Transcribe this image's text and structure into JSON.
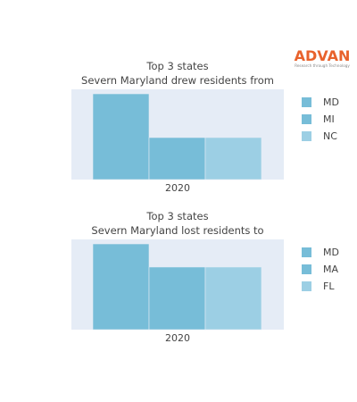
{
  "logo": {
    "brand": "ADVAN",
    "tagline": "Research through Technology",
    "color": "#e8622c"
  },
  "chart_data": [
    {
      "type": "bar",
      "title": [
        "Top 3 states",
        "Severn Maryland drew residents from"
      ],
      "categories": [
        "2020"
      ],
      "series": [
        {
          "name": "MD",
          "values": [
            100
          ],
          "color": "#77bdd8"
        },
        {
          "name": "MI",
          "values": [
            49
          ],
          "color": "#77bdd8"
        },
        {
          "name": "NC",
          "values": [
            49
          ],
          "color": "#9ccfe4"
        }
      ],
      "ylim": [
        0,
        100
      ],
      "grid": false,
      "legend": "right",
      "plot_background": "#e5ecf6"
    },
    {
      "type": "bar",
      "title": [
        "Top 3 states",
        "Severn Maryland lost residents to"
      ],
      "categories": [
        "2020"
      ],
      "series": [
        {
          "name": "MD",
          "values": [
            100
          ],
          "color": "#77bdd8"
        },
        {
          "name": "MA",
          "values": [
            73
          ],
          "color": "#77bdd8"
        },
        {
          "name": "FL",
          "values": [
            73
          ],
          "color": "#9ccfe4"
        }
      ],
      "ylim": [
        0,
        100
      ],
      "grid": false,
      "legend": "right",
      "plot_background": "#e5ecf6"
    }
  ]
}
